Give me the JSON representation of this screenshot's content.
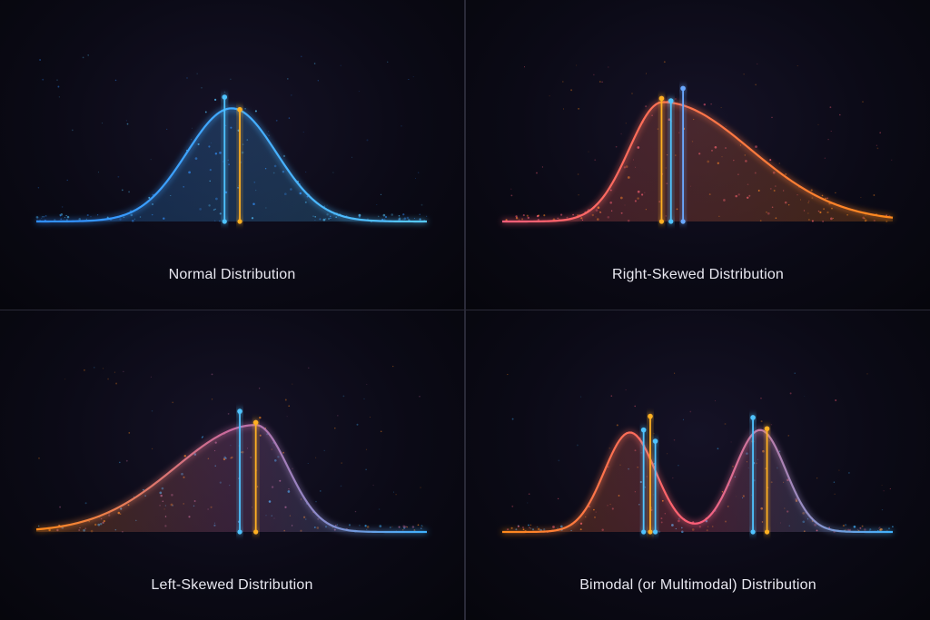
{
  "colors": {
    "background": "#07070f",
    "blue": "#3fb3ff",
    "orange": "#ff8a1c",
    "pink": "#ff6f8a",
    "line_blue": "#4fc3ff",
    "line_yellow": "#ffb020"
  },
  "chart_data": [
    {
      "type": "area",
      "title": "Normal Distribution",
      "xlim": [
        0,
        1
      ],
      "ylim": [
        0,
        1
      ],
      "grid": false,
      "curve": {
        "kind": "normal",
        "center": 0.5,
        "spread": 0.115,
        "peak": 0.91
      },
      "gradient": [
        "#2f8dff",
        "#56c8ff"
      ],
      "markers": [
        {
          "x": 0.482,
          "height": 1.0,
          "color": "#4fc3ff"
        },
        {
          "x": 0.521,
          "height": 0.9,
          "color": "#ffb020"
        }
      ]
    },
    {
      "type": "area",
      "title": "Right-Skewed Distribution",
      "xlim": [
        0,
        1
      ],
      "ylim": [
        0,
        1
      ],
      "grid": false,
      "curve": {
        "kind": "skewed",
        "center": 0.41,
        "left_spread": 0.085,
        "right_spread": 0.225,
        "peak": 0.96
      },
      "gradient": [
        "#ff5e7a",
        "#ff8a1c"
      ],
      "markers": [
        {
          "x": 0.408,
          "height": 0.99,
          "color": "#ffb020"
        },
        {
          "x": 0.432,
          "height": 0.97,
          "color": "#4fc3ff"
        },
        {
          "x": 0.463,
          "height": 1.07,
          "color": "#6aa8ff"
        }
      ]
    },
    {
      "type": "area",
      "title": "Left-Skewed Distribution",
      "xlim": [
        0,
        1
      ],
      "ylim": [
        0,
        1
      ],
      "grid": false,
      "curve": {
        "kind": "skewed",
        "center": 0.562,
        "left_spread": 0.205,
        "right_spread": 0.082,
        "peak": 0.86
      },
      "gradient": [
        "#ff8a1c",
        "#c86aa0",
        "#3fb3ff"
      ],
      "markers": [
        {
          "x": 0.521,
          "height": 0.97,
          "color": "#4fc3ff"
        },
        {
          "x": 0.562,
          "height": 0.88,
          "color": "#ffb020"
        }
      ]
    },
    {
      "type": "area",
      "title": "Bimodal (or Multimodal) Distribution",
      "xlim": [
        0,
        1
      ],
      "ylim": [
        0,
        1
      ],
      "grid": false,
      "curve": {
        "kind": "bimodal",
        "peaks": [
          {
            "center": 0.327,
            "spread": 0.066,
            "peak": 0.8
          },
          {
            "center": 0.66,
            "spread": 0.066,
            "peak": 0.82
          }
        ]
      },
      "gradient": [
        "#ff8a1c",
        "#ff5e7a",
        "#3fb3ff"
      ],
      "markers": [
        {
          "x": 0.362,
          "height": 0.82,
          "color": "#4fc3ff"
        },
        {
          "x": 0.379,
          "height": 0.93,
          "color": "#ffb020"
        },
        {
          "x": 0.392,
          "height": 0.73,
          "color": "#4fc3ff"
        },
        {
          "x": 0.642,
          "height": 0.92,
          "color": "#4fc3ff"
        },
        {
          "x": 0.678,
          "height": 0.83,
          "color": "#ffb020"
        }
      ]
    }
  ]
}
